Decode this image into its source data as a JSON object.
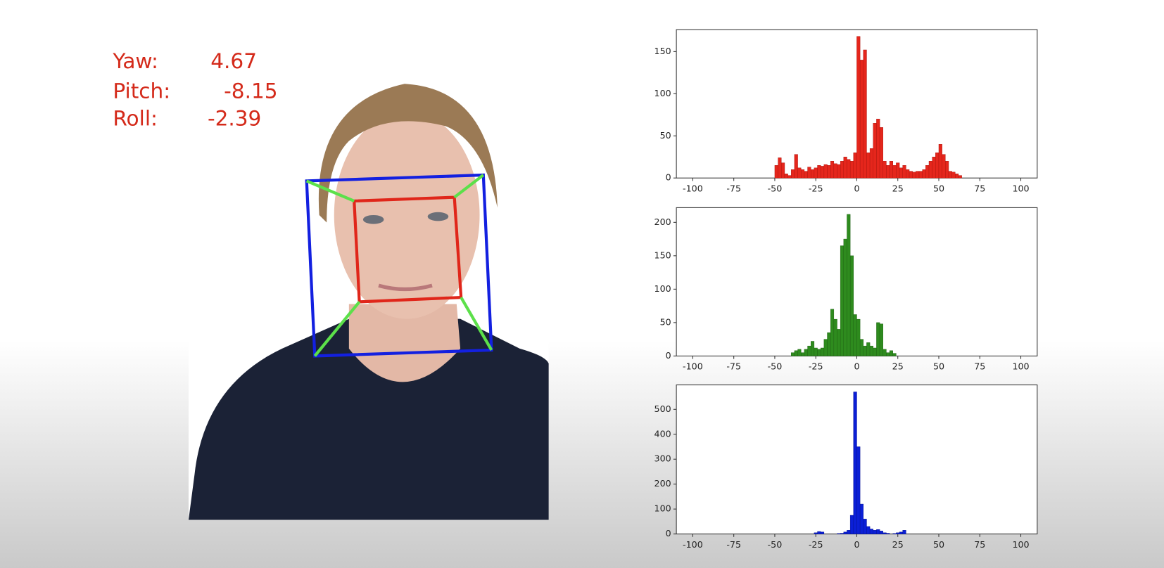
{
  "overlay": {
    "rows": [
      {
        "label": "Yaw:",
        "value": "4.67"
      },
      {
        "label": "Pitch:",
        "value": "-8.15"
      },
      {
        "label": "Roll:",
        "value": "-2.39"
      }
    ]
  },
  "chart_data": [
    {
      "type": "histogram",
      "color": "#e5261c",
      "edgecolor": "#a8140c",
      "bins": [
        -50,
        -48,
        -46,
        -44,
        -42,
        -40,
        -38,
        -36,
        -34,
        -32,
        -30,
        -28,
        -26,
        -24,
        -22,
        -20,
        -18,
        -16,
        -14,
        -12,
        -10,
        -8,
        -6,
        -4,
        -2,
        0,
        2,
        4,
        6,
        8,
        10,
        12,
        14,
        16,
        18,
        20,
        22,
        24,
        26,
        28,
        30,
        32,
        34,
        36,
        38,
        40,
        42,
        44,
        46,
        48,
        50,
        52,
        54,
        56,
        58,
        60,
        62,
        64
      ],
      "counts": [
        15,
        24,
        18,
        5,
        3,
        10,
        28,
        12,
        10,
        8,
        13,
        10,
        12,
        15,
        14,
        16,
        15,
        20,
        17,
        16,
        20,
        25,
        22,
        20,
        30,
        168,
        140,
        152,
        30,
        35,
        65,
        70,
        60,
        20,
        15,
        20,
        15,
        18,
        12,
        15,
        10,
        8,
        7,
        8,
        8,
        10,
        15,
        20,
        25,
        30,
        40,
        28,
        20,
        8,
        7,
        5,
        3
      ],
      "xlim": [
        -110,
        110
      ],
      "ylim": [
        0,
        176
      ],
      "xticks": [
        -100,
        -75,
        -50,
        -25,
        0,
        25,
        50,
        75,
        100
      ],
      "yticks": [
        0,
        50,
        100,
        150
      ]
    },
    {
      "type": "histogram",
      "color": "#2e8b1e",
      "edgecolor": "#1d5f12",
      "bins": [
        -40,
        -38,
        -36,
        -34,
        -32,
        -30,
        -28,
        -26,
        -24,
        -22,
        -20,
        -18,
        -16,
        -14,
        -12,
        -10,
        -8,
        -6,
        -4,
        -2,
        0,
        2,
        4,
        6,
        8,
        10,
        12,
        14,
        16,
        18,
        20,
        22,
        24
      ],
      "counts": [
        5,
        8,
        10,
        5,
        10,
        15,
        22,
        12,
        10,
        12,
        25,
        35,
        70,
        55,
        40,
        165,
        175,
        212,
        150,
        62,
        55,
        25,
        15,
        20,
        15,
        12,
        50,
        48,
        10,
        5,
        8,
        4
      ],
      "xlim": [
        -110,
        110
      ],
      "ylim": [
        0,
        222
      ],
      "xticks": [
        -100,
        -75,
        -50,
        -25,
        0,
        25,
        50,
        75,
        100
      ],
      "yticks": [
        0,
        50,
        100,
        150,
        200
      ]
    },
    {
      "type": "histogram",
      "color": "#0b1fd6",
      "edgecolor": "#06128f",
      "bins": [
        -26,
        -24,
        -22,
        -20,
        -18,
        -16,
        -14,
        -12,
        -10,
        -8,
        -6,
        -4,
        -2,
        0,
        2,
        4,
        6,
        8,
        10,
        12,
        14,
        16,
        18,
        20,
        22,
        24,
        26,
        28,
        30
      ],
      "counts": [
        5,
        10,
        8,
        0,
        0,
        0,
        0,
        2,
        3,
        8,
        15,
        75,
        570,
        350,
        120,
        60,
        30,
        20,
        15,
        18,
        12,
        5,
        3,
        0,
        2,
        5,
        8,
        15
      ],
      "xlim": [
        -110,
        110
      ],
      "ylim": [
        0,
        598
      ],
      "xticks": [
        -100,
        -75,
        -50,
        -25,
        0,
        25,
        50,
        75,
        100
      ],
      "yticks": [
        0,
        100,
        200,
        300,
        400,
        500
      ]
    }
  ]
}
